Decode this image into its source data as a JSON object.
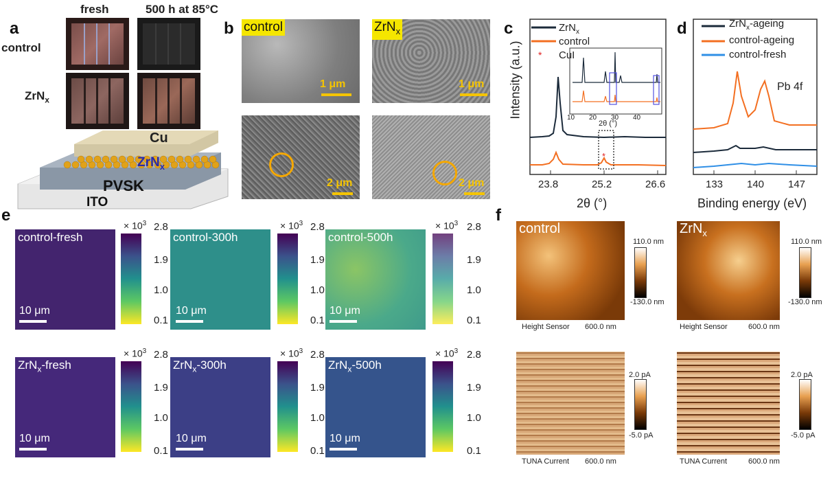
{
  "panel_a": {
    "label": "a",
    "col_fresh": "fresh",
    "col_aged": "500 h at 85°C",
    "row_control": "control",
    "row_zrnx": "ZrN",
    "row_zrnx_sub": "x",
    "layer_cu": "Cu",
    "layer_zrnx": "ZrN",
    "layer_zrnx_sub": "x",
    "layer_pvsk": "PVSK",
    "layer_ito": "ITO"
  },
  "panel_b": {
    "label": "b",
    "tag_control": "control",
    "tag_zrnx": "ZrN",
    "tag_zrnx_sub": "x",
    "scale_top": "1 μm",
    "scale_bottom": "2 μm"
  },
  "panel_c": {
    "label": "c",
    "legend": [
      {
        "name": "ZrN",
        "sub": "x",
        "color": "#1b2a3a"
      },
      {
        "name": "control",
        "sub": "",
        "color": "#f36f21"
      },
      {
        "name": "CuI",
        "sub": "",
        "color": "#e02020",
        "marker": "*"
      }
    ],
    "ylabel": "Intensity (a.u.)",
    "xlabel": "2θ (°)",
    "xticks": [
      "23.8",
      "25.2",
      "26.6"
    ],
    "inset_xticks": [
      "10",
      "20",
      "30",
      "40"
    ],
    "inset_xlabel": "2θ (°)"
  },
  "panel_d": {
    "label": "d",
    "legend": [
      {
        "name": "ZrN",
        "sub": "x",
        "suffix": "-ageing",
        "color": "#1b2a3a"
      },
      {
        "name": "control-ageing",
        "sub": "",
        "suffix": "",
        "color": "#f36f21"
      },
      {
        "name": "control-fresh",
        "sub": "",
        "suffix": "",
        "color": "#2f8fe6"
      }
    ],
    "annotation": "Pb 4f",
    "xlabel": "Binding energy (eV)",
    "xticks": [
      "133",
      "140",
      "147"
    ]
  },
  "panel_e": {
    "label": "e",
    "colorbar_mult": "× 10",
    "colorbar_exp": "3",
    "colorbar_ticks": [
      "2.8",
      "1.9",
      "1.0",
      "0.1"
    ],
    "scale": "10 μm",
    "maps": [
      {
        "title": "control-fresh",
        "sub": "",
        "suffix": "",
        "level": 0.05
      },
      {
        "title": "control-300h",
        "sub": "",
        "suffix": "",
        "level": 0.45
      },
      {
        "title": "control-500h",
        "sub": "",
        "suffix": "",
        "level": 0.65
      },
      {
        "title": "ZrN",
        "sub": "x",
        "suffix": "-fresh",
        "level": 0.08
      },
      {
        "title": "ZrN",
        "sub": "x",
        "suffix": "-300h",
        "level": 0.15
      },
      {
        "title": "ZrN",
        "sub": "x",
        "suffix": "-500h",
        "level": 0.2
      }
    ]
  },
  "panel_f": {
    "label": "f",
    "tag_control": "control",
    "tag_zrnx": "ZrN",
    "tag_zrnx_sub": "x",
    "height_max": "110.0 nm",
    "height_min": "-130.0 nm",
    "current_max": "2.0 pA",
    "current_min": "-5.0 pA",
    "height_caption": "Height Sensor",
    "current_caption": "TUNA Current",
    "scale": "600.0 nm"
  }
}
